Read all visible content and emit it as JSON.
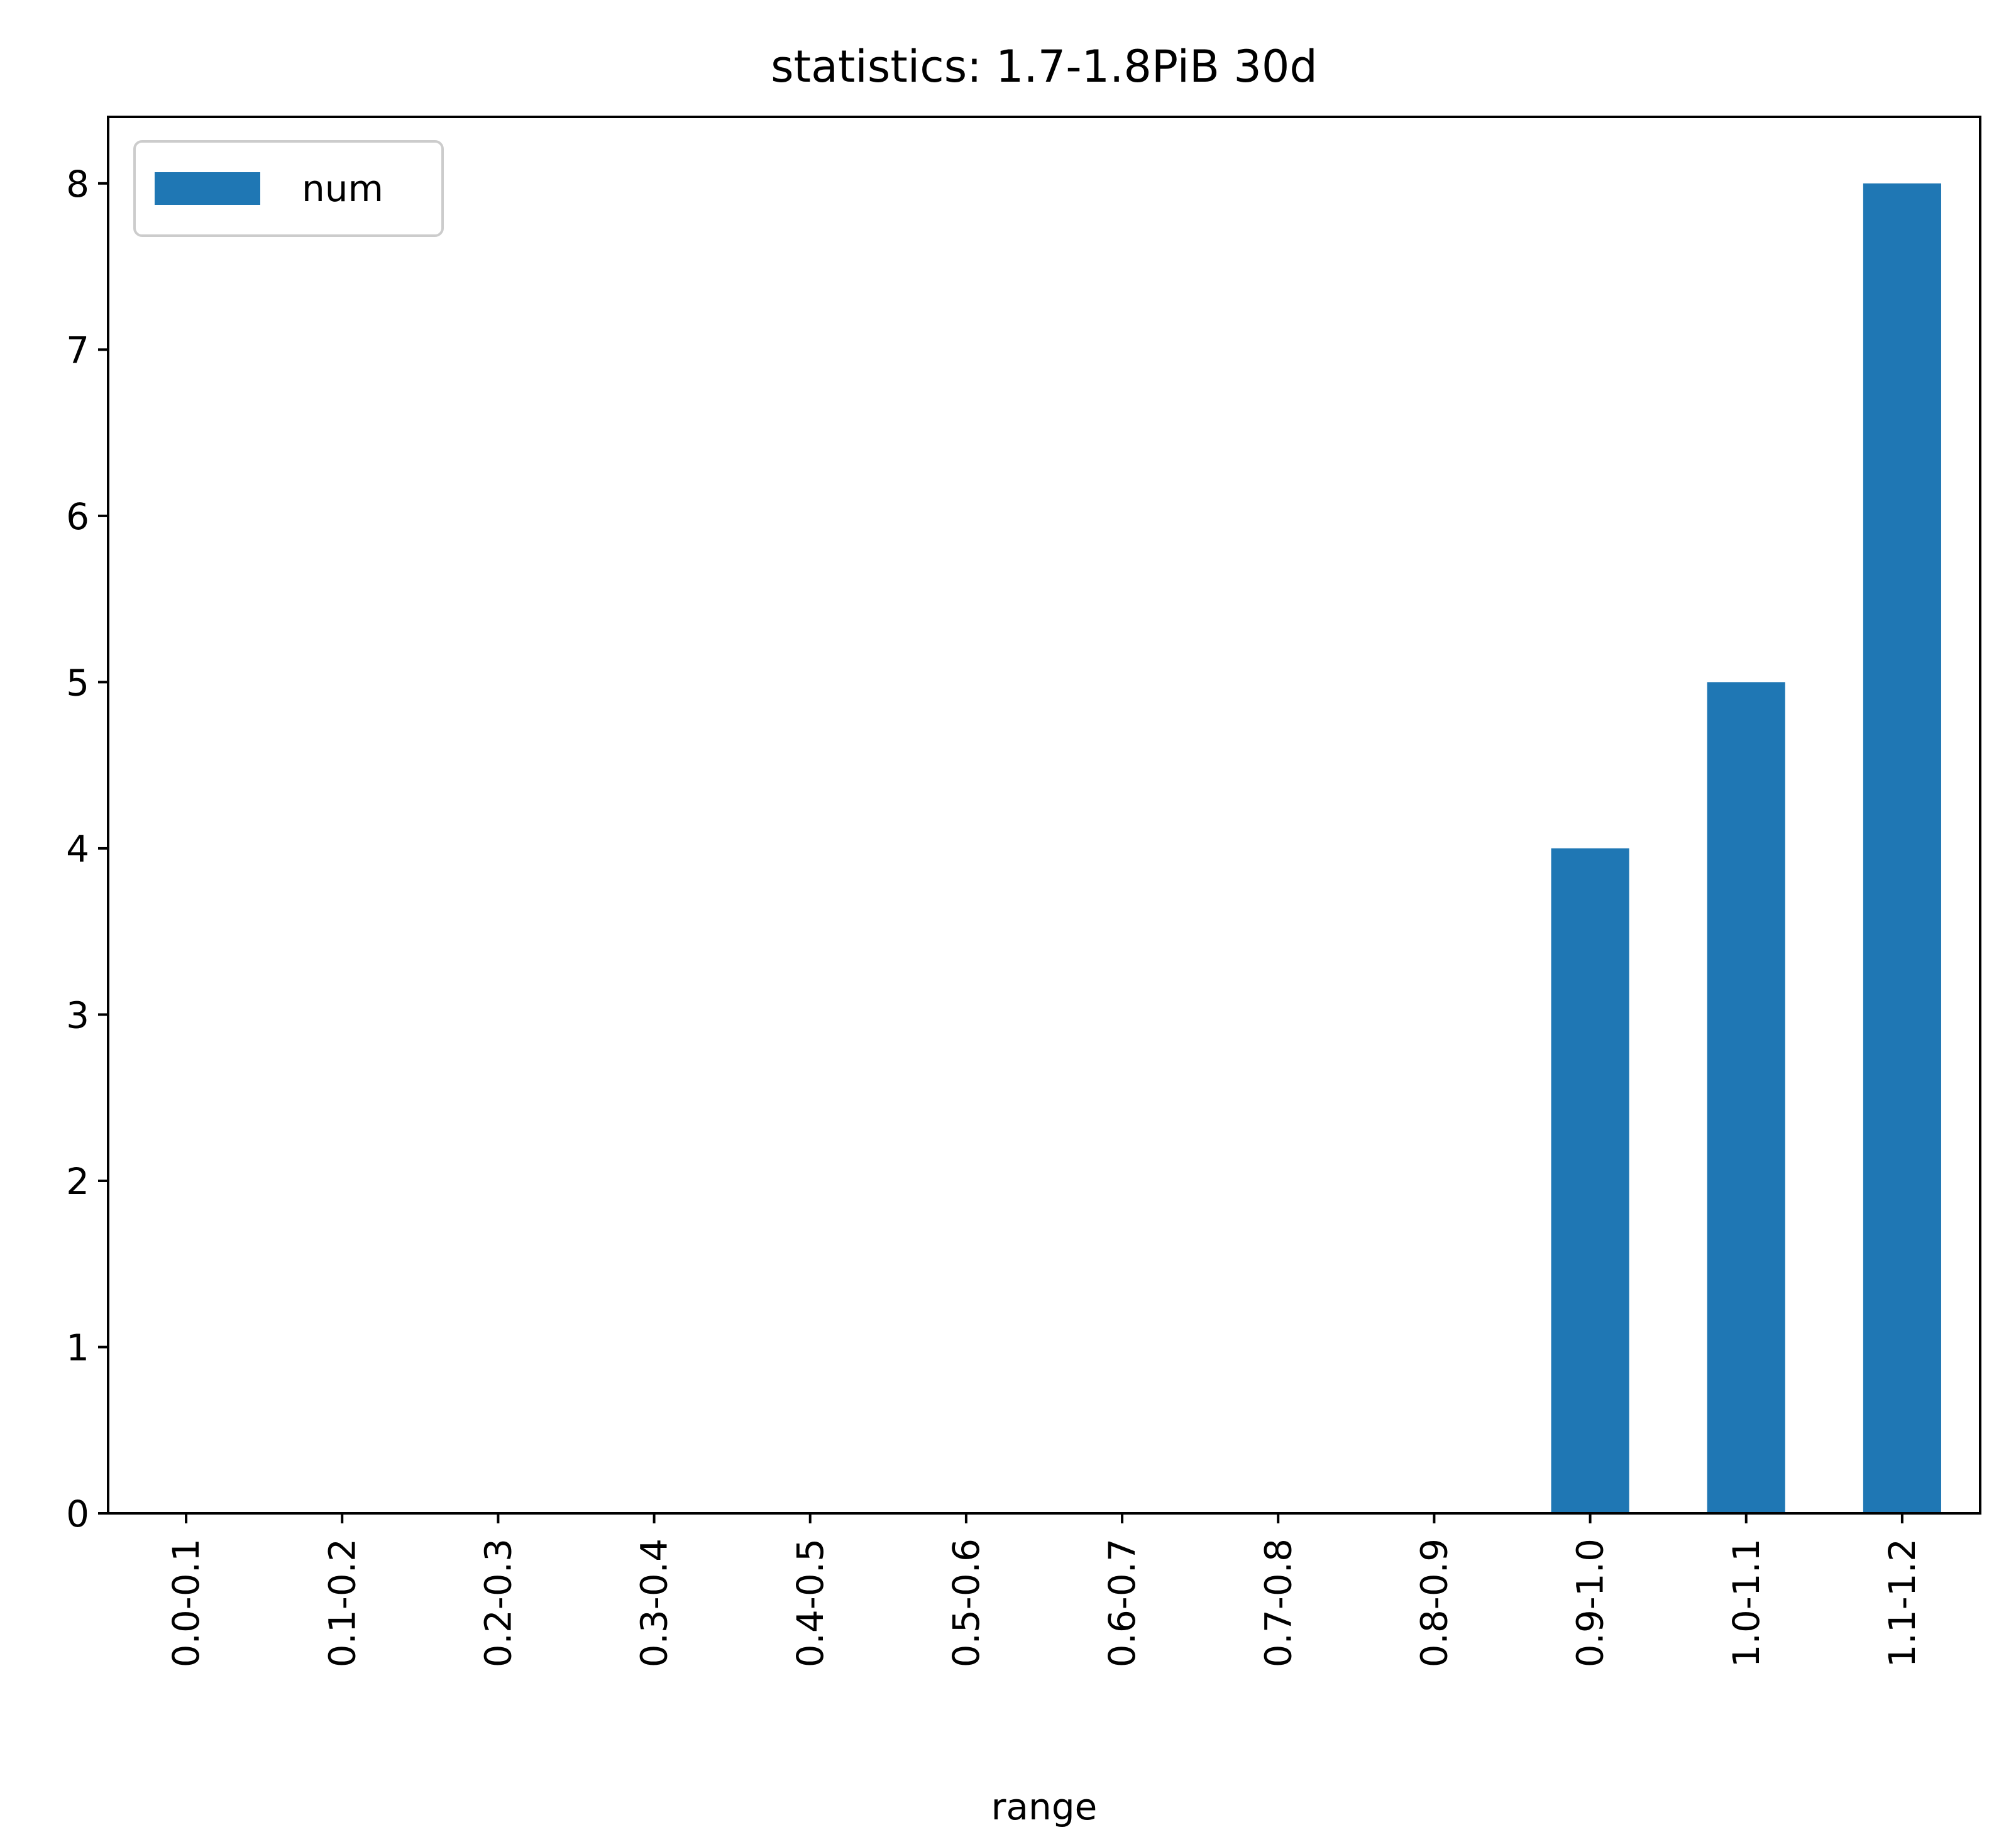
{
  "chart_data": {
    "type": "bar",
    "title": "statistics: 1.7-1.8PiB 30d",
    "xlabel": "range",
    "ylabel": "",
    "categories": [
      "0.0-0.1",
      "0.1-0.2",
      "0.2-0.3",
      "0.3-0.4",
      "0.4-0.5",
      "0.5-0.6",
      "0.6-0.7",
      "0.7-0.8",
      "0.8-0.9",
      "0.9-1.0",
      "1.0-1.1",
      "1.1-1.2"
    ],
    "series": [
      {
        "name": "num",
        "values": [
          0,
          0,
          0,
          0,
          0,
          0,
          0,
          0,
          0,
          4,
          5,
          8
        ],
        "color": "#1f77b4"
      }
    ],
    "ylim": [
      0,
      8.4
    ],
    "yticks": [
      0,
      1,
      2,
      3,
      4,
      5,
      6,
      7,
      8
    ],
    "grid": false,
    "legend_position": "top-left"
  }
}
